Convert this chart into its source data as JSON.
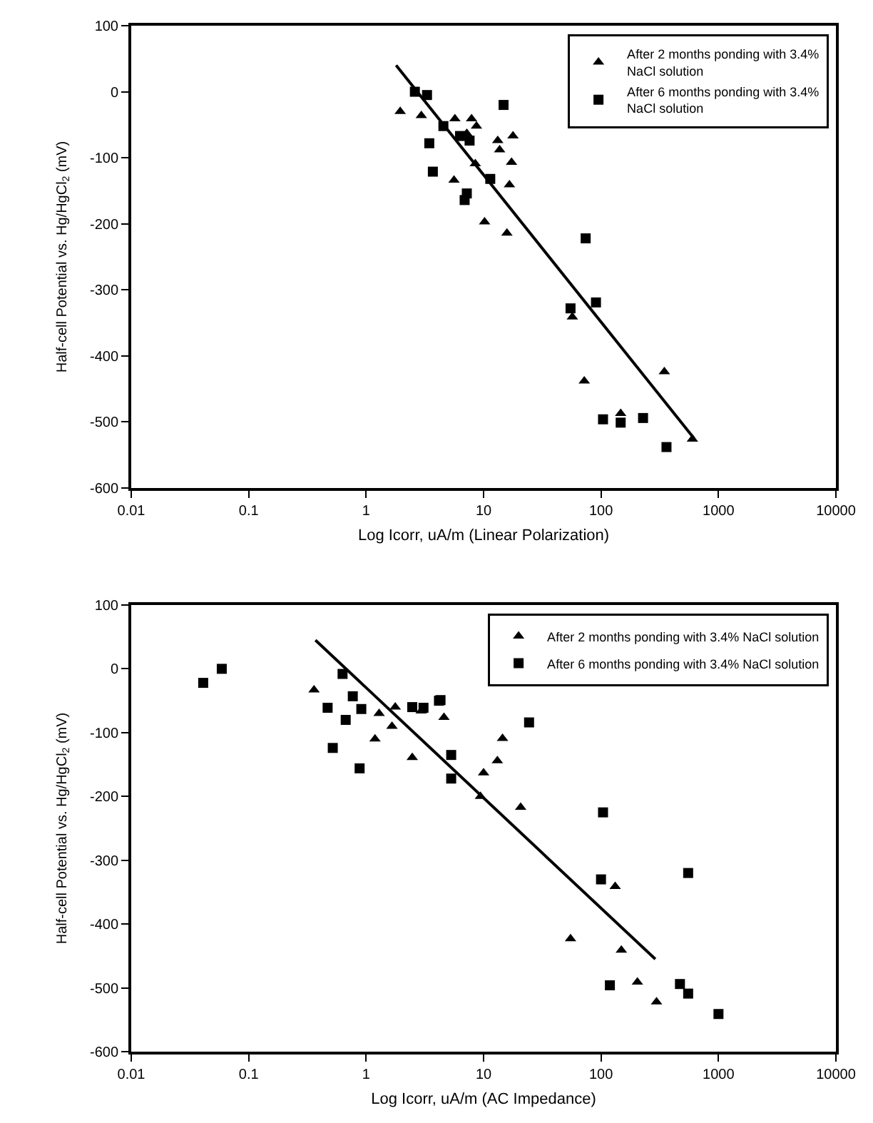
{
  "chart_data": [
    {
      "type": "scatter",
      "xlabel": "Log Icorr, uA/m (Linear Polarization)",
      "ylabel": "Half-cell Potential vs. Hg/HgCl$_{2}$ (mV)",
      "log": "x",
      "xlim": [
        0.01,
        10000
      ],
      "xticks": [
        0.01,
        0.1,
        1,
        10,
        100,
        1000,
        10000
      ],
      "ylim": [
        -600,
        100
      ],
      "yticks": [
        -600,
        -500,
        -400,
        -300,
        -200,
        -100,
        0,
        100
      ],
      "legend": "top right",
      "series": [
        {
          "name": "After 2 months ponding with 3.4% NaCl solution",
          "color": "#000000",
          "marker": "triangle",
          "x": [
            1.95,
            2.95,
            5.7,
            7.9,
            8.7,
            7.2,
            13.2,
            13.7,
            17.8,
            17.3,
            16.6,
            8.5,
            5.6,
            10.2,
            15.8,
            57,
            72,
            147,
            346,
            600
          ],
          "values": [
            -30,
            -36,
            -41,
            -41,
            -52,
            -63,
            -74,
            -88,
            -67,
            -107,
            -141,
            -109,
            -134,
            -197,
            -214,
            -341,
            -438,
            -487,
            -424,
            -526
          ]
        },
        {
          "name": "After 6 months ponding with 3.4% NaCl solution",
          "color": "#000000",
          "marker": "square",
          "x": [
            2.6,
            3.3,
            3.45,
            3.7,
            4.55,
            6.3,
            7.6,
            14.8,
            11.4,
            7.2,
            6.9,
            74,
            90.6,
            55,
            104,
            147,
            228,
            361
          ],
          "values": [
            0,
            -5,
            -78,
            -121,
            -52,
            -67,
            -74,
            -20,
            -132,
            -154,
            -164,
            -222,
            -319,
            -328,
            -496,
            -501,
            -494,
            -538
          ]
        },
        {
          "type": "line",
          "color": "#000000",
          "marker": "none",
          "x": [
            1.8,
            620
          ],
          "values": [
            40,
            -525
          ]
        }
      ]
    },
    {
      "type": "scatter",
      "xlabel": "Log Icorr, uA/m (AC Impedance)",
      "ylabel": "Half-cell Potential vs. Hg/HgCl$_{2}$ (mV)",
      "log": "x",
      "xlim": [
        0.01,
        10000
      ],
      "xticks": [
        0.01,
        0.1,
        1,
        10,
        100,
        1000,
        10000
      ],
      "ylim": [
        -600,
        100
      ],
      "yticks": [
        -600,
        -500,
        -400,
        -300,
        -200,
        -100,
        0,
        100
      ],
      "legend": "top right",
      "series": [
        {
          "name": "After 2 months ponding with 3.4% NaCl solution",
          "color": "#000000",
          "marker": "triangle",
          "x": [
            0.36,
            1.29,
            1.19,
            1.77,
            1.66,
            2.47,
            2.94,
            4.6,
            14.5,
            13.1,
            10.0,
            9.4,
            20.7,
            132,
            55,
            149,
            204,
            297
          ],
          "values": [
            -33,
            -70,
            -110,
            -60,
            -90,
            -139,
            -66,
            -76,
            -109,
            -144,
            -163,
            -200,
            -217,
            -341,
            -423,
            -441,
            -491,
            -522
          ]
        },
        {
          "name": "After 6 months ponding with 3.4% NaCl solution",
          "color": "#000000",
          "marker": "square",
          "x": [
            0.041,
            0.059,
            0.47,
            0.52,
            0.63,
            0.67,
            0.77,
            0.88,
            0.91,
            2.47,
            3.08,
            4.17,
            4.3,
            24.4,
            5.3,
            5.3,
            104,
            100,
            552,
            119,
            470,
            552,
            1000
          ],
          "values": [
            -22,
            0,
            -61,
            -124,
            -8,
            -80,
            -43,
            -156,
            -63,
            -60,
            -61,
            -50,
            -49,
            -84,
            -135,
            -172,
            -225,
            -330,
            -320,
            -496,
            -494,
            -509,
            -541
          ]
        },
        {
          "type": "line",
          "color": "#000000",
          "marker": "none",
          "x": [
            0.37,
            290
          ],
          "values": [
            45,
            -455
          ]
        }
      ]
    }
  ]
}
